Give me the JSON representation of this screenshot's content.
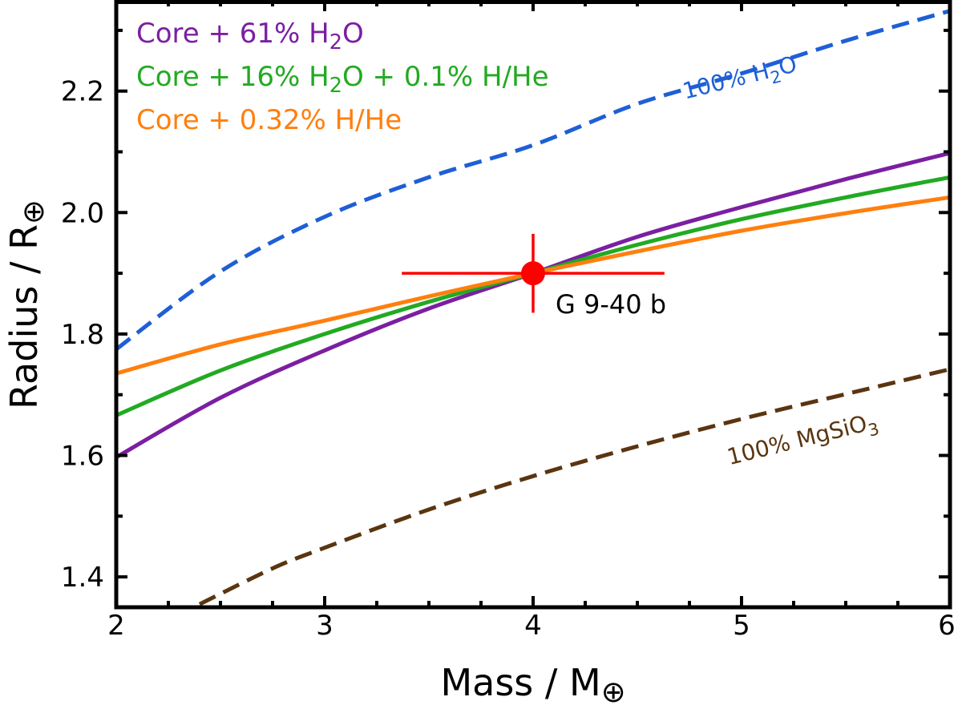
{
  "chart_data": {
    "type": "line",
    "xlabel": "Mass / M",
    "xlabel_symbol": "⊕",
    "ylabel": "Radius / R",
    "ylabel_symbol": "⊕",
    "xlim": [
      2,
      6
    ],
    "ylim": [
      1.35,
      2.35
    ],
    "x_ticks": [
      2,
      3,
      4,
      5,
      6
    ],
    "y_ticks": [
      1.4,
      1.6,
      1.8,
      2.0,
      2.2
    ],
    "x_tick_labels": [
      "2",
      "3",
      "4",
      "5",
      "6"
    ],
    "y_tick_labels": [
      "1.4",
      "1.6",
      "1.8",
      "2.0",
      "2.2"
    ],
    "grid": false,
    "legend_position": "top-left",
    "series": [
      {
        "name": "Core + 61% H₂O",
        "color": "#7b1fa2",
        "dash": "solid",
        "x": [
          2.0,
          2.5,
          3.0,
          3.5,
          4.0,
          4.5,
          5.0,
          5.5,
          6.0
        ],
        "y": [
          1.597,
          1.695,
          1.773,
          1.842,
          1.9,
          1.96,
          2.009,
          2.055,
          2.098
        ]
      },
      {
        "name": "Core + 16% H₂O + 0.1% H/He",
        "color": "#22aa22",
        "dash": "solid",
        "x": [
          2.0,
          2.5,
          3.0,
          3.5,
          4.0,
          4.5,
          5.0,
          5.5,
          6.0
        ],
        "y": [
          1.666,
          1.74,
          1.8,
          1.853,
          1.9,
          1.947,
          1.989,
          2.025,
          2.058
        ]
      },
      {
        "name": "Core + 0.32% H/He",
        "color": "#ff7f0e",
        "dash": "solid",
        "x": [
          2.0,
          2.5,
          3.0,
          3.5,
          4.0,
          4.5,
          5.0,
          5.5,
          6.0
        ],
        "y": [
          1.735,
          1.783,
          1.822,
          1.862,
          1.9,
          1.936,
          1.97,
          1.999,
          2.025
        ]
      },
      {
        "name": "100% H₂O",
        "color": "#1f5fd6",
        "dash": "dashed",
        "x": [
          2.0,
          2.5,
          3.0,
          3.5,
          4.0,
          4.5,
          5.0,
          5.5,
          6.0
        ],
        "y": [
          1.775,
          1.903,
          1.993,
          2.058,
          2.111,
          2.179,
          2.229,
          2.283,
          2.332
        ]
      },
      {
        "name": "100% MgSiO₃",
        "color": "#5a3510",
        "dash": "dashed",
        "x": [
          2.4,
          2.75,
          3.0,
          3.5,
          4.0,
          4.5,
          5.0,
          5.5,
          6.0
        ],
        "y": [
          1.355,
          1.414,
          1.448,
          1.511,
          1.566,
          1.615,
          1.66,
          1.701,
          1.742
        ]
      }
    ],
    "curve_labels": [
      {
        "text": "100% H",
        "sub": "2",
        "tail": "O",
        "series": "100% H₂O",
        "x": 5.0,
        "y": 2.21,
        "angle": -14
      },
      {
        "text": "100% MgSiO",
        "sub": "3",
        "tail": "",
        "series": "100% MgSiO₃",
        "x": 5.3,
        "y": 1.615,
        "angle": -14
      }
    ],
    "legend": [
      {
        "text": "Core + 61% H",
        "sub": "2",
        "tail": "O",
        "color": "#7b1fa2"
      },
      {
        "text": "Core + 16% H",
        "sub": "2",
        "tail": "O + 0.1% H/He",
        "color": "#22aa22"
      },
      {
        "text": "Core + 0.32% H/He",
        "sub": "",
        "tail": "",
        "color": "#ff7f0e"
      }
    ],
    "point": {
      "label": "G 9-40 b",
      "x": 4.0,
      "y": 1.9,
      "xerr": 0.63,
      "yerr_up": 0.065,
      "yerr_down": 0.065,
      "color": "#ff0000"
    }
  }
}
